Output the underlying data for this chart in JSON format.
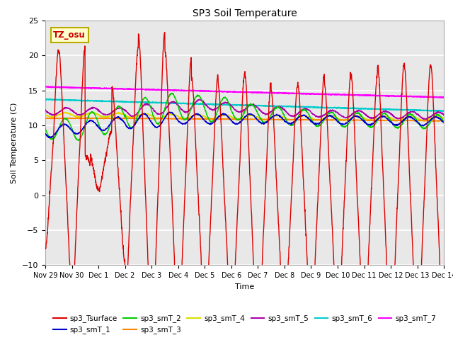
{
  "title": "SP3 Soil Temperature",
  "ylabel": "Soil Temperature (C)",
  "xlabel": "Time",
  "ylim": [
    -10,
    25
  ],
  "yticks": [
    -10,
    -5,
    0,
    5,
    10,
    15,
    20,
    25
  ],
  "annotation_text": "TZ_osu",
  "annotation_color": "#cc0000",
  "annotation_bg": "#ffffcc",
  "annotation_border": "#bbaa00",
  "plot_bg": "#e8e8e8",
  "series_colors": {
    "sp3_Tsurface": "#dd0000",
    "sp3_smT_1": "#0000cc",
    "sp3_smT_2": "#00cc00",
    "sp3_smT_3": "#ff8800",
    "sp3_smT_4": "#dddd00",
    "sp3_smT_5": "#aa00aa",
    "sp3_smT_6": "#00cccc",
    "sp3_smT_7": "#ff00ff"
  },
  "xtick_positions": [
    0,
    1,
    2,
    3,
    4,
    5,
    6,
    7,
    8,
    9,
    10,
    11,
    12,
    13,
    14,
    15
  ],
  "xtick_labels": [
    "Nov 29",
    "Nov 30",
    "Dec 1",
    "Dec 2",
    "Dec 3",
    "Dec 4",
    "Dec 5",
    "Dec 6",
    "Dec 7",
    "Dec 8",
    "Dec 9",
    "Dec 10",
    "Dec 11",
    "Dec 12",
    "Dec 13",
    "Dec 14"
  ]
}
